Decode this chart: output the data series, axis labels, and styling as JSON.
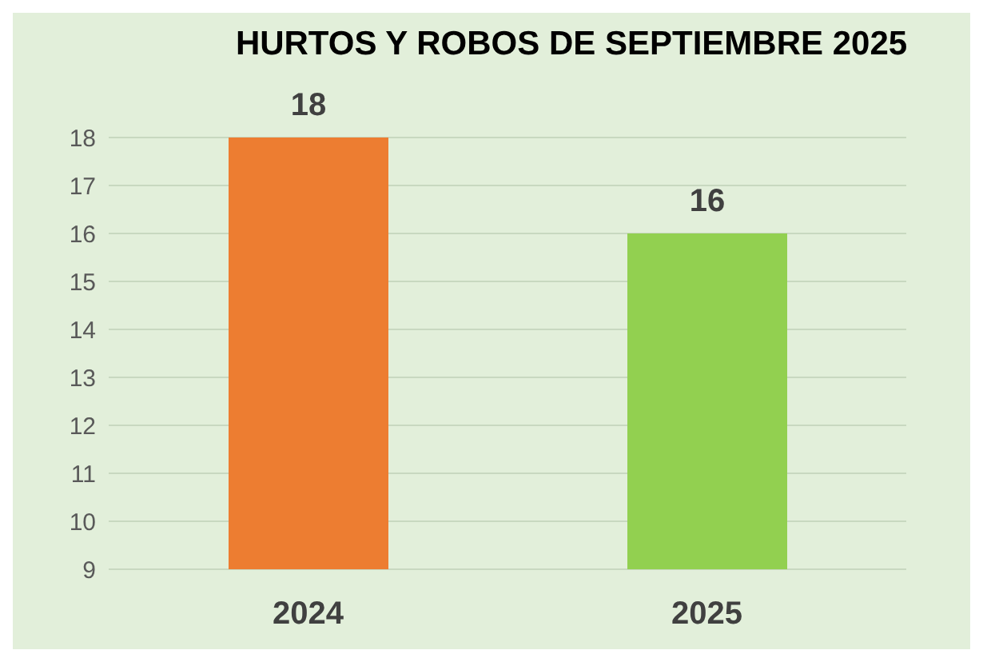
{
  "chart_data": {
    "type": "bar",
    "title": "HURTOS Y ROBOS DE SEPTIEMBRE 2025",
    "categories": [
      "2024",
      "2025"
    ],
    "values": [
      18,
      16
    ],
    "colors": [
      "#ed7d31",
      "#92d050"
    ],
    "ylim": [
      9,
      18
    ],
    "yticks": [
      9,
      10,
      11,
      12,
      13,
      14,
      15,
      16,
      17,
      18
    ],
    "grid": "y",
    "data_labels": true
  }
}
